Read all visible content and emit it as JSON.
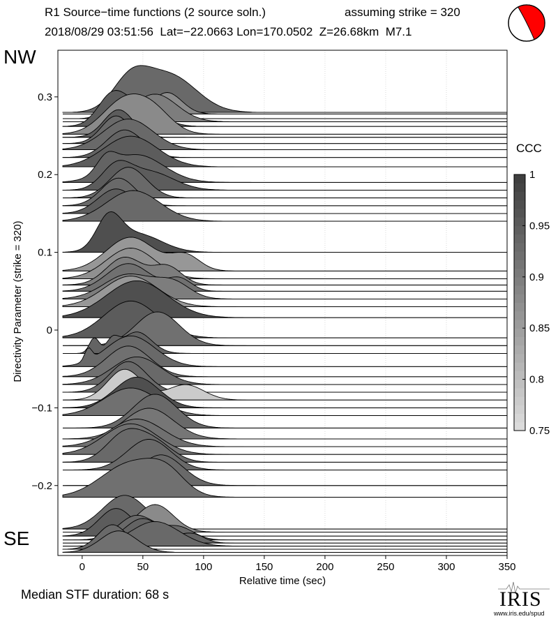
{
  "header": {
    "title": "R1 Source−time functions (2 source soln.)",
    "strike_note": "assuming strike = 320",
    "event_line": "2018/08/29 03:51:56  Lat=−22.0663 Lon=170.0502  Z=26.68km  M7.1"
  },
  "labels": {
    "nw": "NW",
    "se": "SE"
  },
  "footer": {
    "median": "Median STF duration: 68 s"
  },
  "logo": {
    "word": "IRIS",
    "url": "www.iris.edu/spud"
  },
  "colorbar": {
    "title": "CCC",
    "ticks": [
      "1",
      "0.95",
      "0.9",
      "0.85",
      "0.8",
      "0.75"
    ],
    "range": [
      0.75,
      1
    ]
  },
  "chart_data": {
    "type": "line",
    "xlabel": "Relative time (sec)",
    "ylabel": "Directivity Parameter (strike = 320)",
    "xlim": [
      -20,
      350
    ],
    "ylim": [
      -0.29,
      0.36
    ],
    "x_ticks": [
      0,
      50,
      100,
      150,
      200,
      250,
      300,
      350
    ],
    "y_ticks": [
      0.3,
      0.2,
      0.1,
      0,
      -0.1,
      -0.2
    ],
    "x_tick_labels": [
      "0",
      "50",
      "100",
      "150",
      "200",
      "250",
      "300",
      "350"
    ],
    "y_tick_labels": [
      "0.3",
      "0.2",
      "0.1",
      "0",
      "−0.1",
      "−0.2"
    ],
    "grid": "vertical dotted",
    "traces": [
      {
        "y": 0.28,
        "ccc": 0.93,
        "pulses": [
          [
            40,
            15,
            0.5
          ],
          [
            72,
            22,
            0.6
          ]
        ]
      },
      {
        "y": 0.278,
        "ccc": 0.88,
        "pulses": [
          [
            70,
            12,
            0.35
          ]
        ]
      },
      {
        "y": 0.272,
        "ccc": 0.97,
        "pulses": [
          [
            30,
            10,
            0.4
          ]
        ]
      },
      {
        "y": 0.268,
        "ccc": 0.9,
        "pulses": [
          [
            60,
            18,
            0.45
          ]
        ]
      },
      {
        "y": 0.262,
        "ccc": 0.95,
        "pulses": [
          [
            25,
            12,
            0.5
          ],
          [
            50,
            15,
            0.3
          ]
        ]
      },
      {
        "y": 0.252,
        "ccc": 0.88,
        "pulses": [
          [
            35,
            18,
            0.55
          ],
          [
            60,
            15,
            0.3
          ]
        ]
      },
      {
        "y": 0.248,
        "ccc": 0.95,
        "pulses": [
          [
            30,
            12,
            0.45
          ]
        ]
      },
      {
        "y": 0.24,
        "ccc": 0.93,
        "pulses": [
          [
            28,
            12,
            0.45
          ]
        ]
      },
      {
        "y": 0.232,
        "ccc": 0.93,
        "pulses": [
          [
            38,
            20,
            0.5
          ]
        ]
      },
      {
        "y": 0.222,
        "ccc": 0.94,
        "pulses": [
          [
            35,
            15,
            0.45
          ]
        ]
      },
      {
        "y": 0.21,
        "ccc": 0.95,
        "pulses": [
          [
            40,
            22,
            0.5
          ]
        ]
      },
      {
        "y": 0.19,
        "ccc": 0.94,
        "pulses": [
          [
            20,
            8,
            0.25
          ],
          [
            45,
            22,
            0.45
          ]
        ]
      },
      {
        "y": 0.18,
        "ccc": 0.95,
        "pulses": [
          [
            28,
            12,
            0.35
          ],
          [
            55,
            20,
            0.3
          ]
        ]
      },
      {
        "y": 0.17,
        "ccc": 0.93,
        "pulses": [
          [
            38,
            15,
            0.5
          ]
        ]
      },
      {
        "y": 0.16,
        "ccc": 0.93,
        "pulses": [
          [
            30,
            14,
            0.45
          ]
        ]
      },
      {
        "y": 0.15,
        "ccc": 0.95,
        "pulses": [
          [
            28,
            15,
            0.4
          ]
        ]
      },
      {
        "y": 0.14,
        "ccc": 0.93,
        "pulses": [
          [
            42,
            22,
            0.5
          ]
        ]
      },
      {
        "y": 0.1,
        "ccc": 0.97,
        "pulses": [
          [
            22,
            10,
            0.5
          ],
          [
            45,
            20,
            0.3
          ]
        ]
      },
      {
        "y": 0.076,
        "ccc": 0.86,
        "pulses": [
          [
            40,
            20,
            0.55
          ],
          [
            85,
            12,
            0.25
          ]
        ]
      },
      {
        "y": 0.066,
        "ccc": 0.87,
        "pulses": [
          [
            40,
            20,
            0.5
          ]
        ]
      },
      {
        "y": 0.058,
        "ccc": 0.9,
        "pulses": [
          [
            35,
            15,
            0.45
          ],
          [
            70,
            12,
            0.3
          ]
        ]
      },
      {
        "y": 0.05,
        "ccc": 0.92,
        "pulses": [
          [
            38,
            18,
            0.45
          ],
          [
            80,
            10,
            0.2
          ]
        ]
      },
      {
        "y": 0.04,
        "ccc": 0.9,
        "pulses": [
          [
            38,
            20,
            0.4
          ],
          [
            75,
            14,
            0.25
          ]
        ]
      },
      {
        "y": 0.03,
        "ccc": 0.86,
        "pulses": [
          [
            40,
            22,
            0.5
          ]
        ]
      },
      {
        "y": 0.016,
        "ccc": 0.97,
        "pulses": [
          [
            45,
            25,
            0.6
          ]
        ]
      },
      {
        "y": -0.01,
        "ccc": 0.95,
        "pulses": [
          [
            40,
            22,
            0.6
          ]
        ]
      },
      {
        "y": -0.02,
        "ccc": 0.92,
        "pulses": [
          [
            62,
            18,
            0.55
          ]
        ]
      },
      {
        "y": -0.03,
        "ccc": 0.94,
        "pulses": [
          [
            10,
            4,
            0.25
          ],
          [
            25,
            5,
            0.2
          ],
          [
            45,
            12,
            0.35
          ]
        ]
      },
      {
        "y": -0.047,
        "ccc": 0.93,
        "pulses": [
          [
            5,
            3,
            0.2
          ],
          [
            40,
            20,
            0.5
          ]
        ]
      },
      {
        "y": -0.06,
        "ccc": 0.92,
        "pulses": [
          [
            38,
            18,
            0.5
          ]
        ]
      },
      {
        "y": -0.07,
        "ccc": 0.93,
        "pulses": [
          [
            45,
            20,
            0.45
          ]
        ]
      },
      {
        "y": -0.08,
        "ccc": 0.93,
        "pulses": [
          [
            38,
            15,
            0.5
          ]
        ]
      },
      {
        "y": -0.09,
        "ccc": 0.78,
        "pulses": [
          [
            35,
            14,
            0.5
          ],
          [
            85,
            15,
            0.25
          ]
        ]
      },
      {
        "y": -0.1,
        "ccc": 0.97,
        "pulses": [
          [
            45,
            18,
            0.5
          ]
        ]
      },
      {
        "y": -0.11,
        "ccc": 0.92,
        "pulses": [
          [
            40,
            22,
            0.45
          ]
        ]
      },
      {
        "y": -0.126,
        "ccc": 0.93,
        "pulses": [
          [
            60,
            18,
            0.55
          ]
        ]
      },
      {
        "y": -0.14,
        "ccc": 0.91,
        "pulses": [
          [
            55,
            20,
            0.5
          ]
        ]
      },
      {
        "y": -0.15,
        "ccc": 0.92,
        "pulses": [
          [
            45,
            22,
            0.45
          ]
        ]
      },
      {
        "y": -0.16,
        "ccc": 0.92,
        "pulses": [
          [
            40,
            22,
            0.5
          ]
        ]
      },
      {
        "y": -0.17,
        "ccc": 0.93,
        "pulses": [
          [
            35,
            15,
            0.45
          ],
          [
            60,
            15,
            0.3
          ]
        ]
      },
      {
        "y": -0.18,
        "ccc": 0.93,
        "pulses": [
          [
            55,
            18,
            0.5
          ]
        ]
      },
      {
        "y": -0.2,
        "ccc": 0.93,
        "pulses": [
          [
            65,
            18,
            0.5
          ]
        ]
      },
      {
        "y": -0.215,
        "ccc": 0.92,
        "pulses": [
          [
            40,
            24,
            0.55
          ],
          [
            70,
            15,
            0.3
          ]
        ]
      },
      {
        "y": -0.256,
        "ccc": 0.93,
        "pulses": [
          [
            35,
            18,
            0.55
          ]
        ]
      },
      {
        "y": -0.26,
        "ccc": 0.88,
        "pulses": [
          [
            60,
            15,
            0.45
          ]
        ]
      },
      {
        "y": -0.265,
        "ccc": 0.95,
        "pulses": [
          [
            28,
            14,
            0.45
          ]
        ]
      },
      {
        "y": -0.27,
        "ccc": 0.93,
        "pulses": [
          [
            45,
            15,
            0.4
          ],
          [
            80,
            12,
            0.2
          ]
        ]
      },
      {
        "y": -0.274,
        "ccc": 0.94,
        "pulses": [
          [
            50,
            15,
            0.4
          ],
          [
            90,
            10,
            0.15
          ]
        ]
      },
      {
        "y": -0.278,
        "ccc": 0.93,
        "pulses": [
          [
            60,
            20,
            0.4
          ]
        ]
      },
      {
        "y": -0.282,
        "ccc": 0.93,
        "pulses": [
          [
            25,
            12,
            0.4
          ]
        ]
      },
      {
        "y": -0.286,
        "ccc": 0.92,
        "pulses": [
          [
            30,
            15,
            0.35
          ]
        ]
      }
    ]
  }
}
